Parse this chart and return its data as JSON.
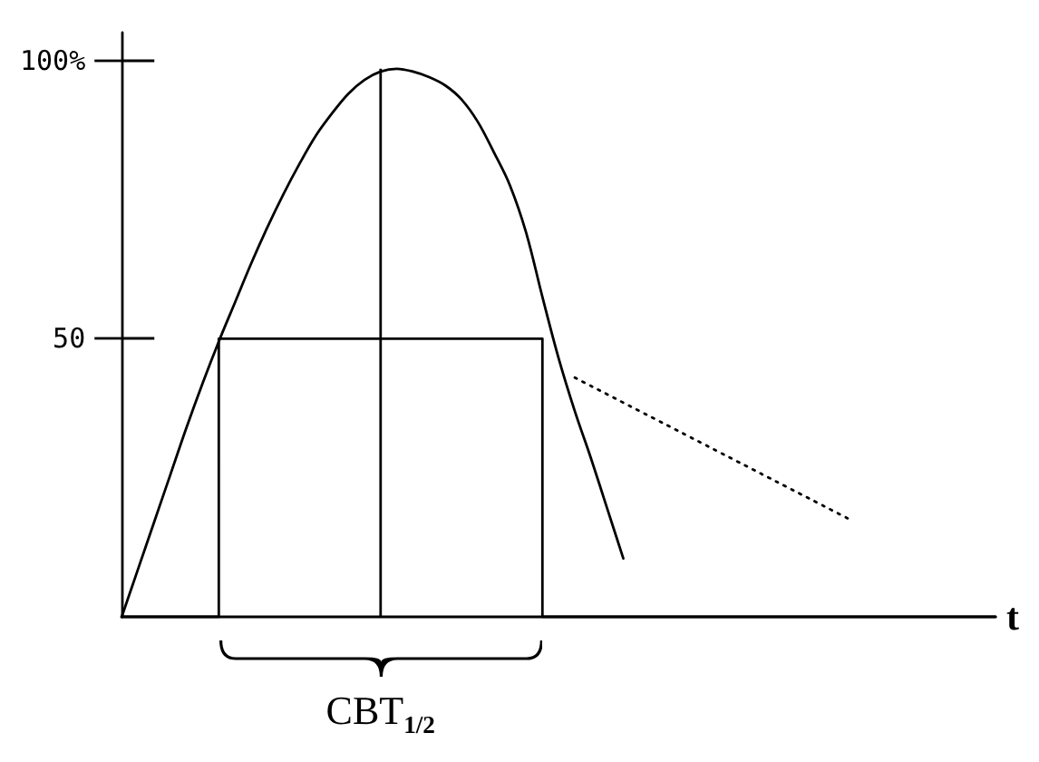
{
  "chart_data": {
    "type": "line",
    "xlabel": "t",
    "categories": [
      null,
      null,
      null,
      null,
      null,
      null,
      null,
      null,
      null,
      null,
      null,
      null,
      null,
      null,
      null,
      null,
      null,
      null,
      null,
      null,
      null,
      null,
      null,
      null,
      null,
      null,
      null,
      null,
      null,
      null,
      null,
      null,
      null,
      null,
      null,
      null,
      null,
      null,
      null,
      null,
      null,
      null,
      null,
      null,
      null,
      null,
      null,
      null,
      null,
      null,
      null,
      null,
      null,
      null,
      null
    ],
    "series": [
      {
        "color": "#000000",
        "values": [
          0,
          8.5,
          17,
          25.5,
          34,
          42,
          49.5,
          56.5,
          63.5,
          70,
          76,
          81.5,
          86.5,
          90.5,
          94,
          96.5,
          98,
          98.5,
          98,
          97,
          95.5,
          93,
          89,
          83.5,
          77.5,
          69,
          57.5,
          46.5,
          37,
          28.5,
          19.5,
          10.5,
          null,
          null,
          null,
          null,
          null,
          null,
          null,
          null,
          null,
          null,
          null,
          null,
          null,
          null,
          null,
          null,
          null,
          null,
          null,
          null,
          null,
          null,
          null
        ]
      },
      {
        "type": "step",
        "color": "#000000",
        "values": [
          0,
          0,
          0,
          0,
          0,
          0,
          50,
          50,
          50,
          50,
          50,
          50,
          50,
          50,
          50,
          50,
          50,
          50,
          50,
          50,
          50,
          50,
          50,
          50,
          50,
          50,
          0,
          0,
          0,
          0,
          0,
          0,
          0,
          0,
          0,
          0,
          0,
          0,
          0,
          0,
          0,
          0,
          0,
          0,
          0,
          0,
          0,
          0,
          0,
          0,
          0,
          0,
          0,
          0,
          0
        ]
      },
      {
        "type": "bar",
        "color": "#000000",
        "values": [
          null,
          null,
          null,
          null,
          null,
          null,
          null,
          null,
          null,
          null,
          null,
          null,
          null,
          null,
          null,
          null,
          98.5,
          null,
          null,
          null,
          null,
          null,
          null,
          null,
          null,
          null,
          null,
          null,
          null,
          null,
          null,
          null,
          null,
          null,
          null,
          null,
          null,
          null,
          null,
          null,
          null,
          null,
          null,
          null,
          null,
          null,
          null,
          null,
          null,
          null,
          null,
          null,
          null,
          null,
          null
        ]
      },
      {
        "color": "#000000",
        "line_style": "dotted",
        "values": [
          null,
          null,
          null,
          null,
          null,
          null,
          null,
          null,
          null,
          null,
          null,
          null,
          null,
          null,
          null,
          null,
          null,
          null,
          null,
          null,
          null,
          null,
          null,
          null,
          null,
          null,
          null,
          null,
          43,
          41.5,
          40,
          38.5,
          37,
          35.5,
          34,
          32.5,
          31,
          29.5,
          28,
          26.5,
          25,
          23.5,
          22,
          20.5,
          19,
          17.5,
          null,
          null,
          null,
          null,
          null,
          null,
          null,
          null,
          null
        ]
      }
    ],
    "ylim": [
      0,
      105
    ],
    "yticks": [
      50,
      {
        "value": 100,
        "label": "100%"
      }
    ],
    "tick_labels": "y",
    "marker": "none",
    "annotations": [
      "CBT$_{1/2}$"
    ]
  }
}
